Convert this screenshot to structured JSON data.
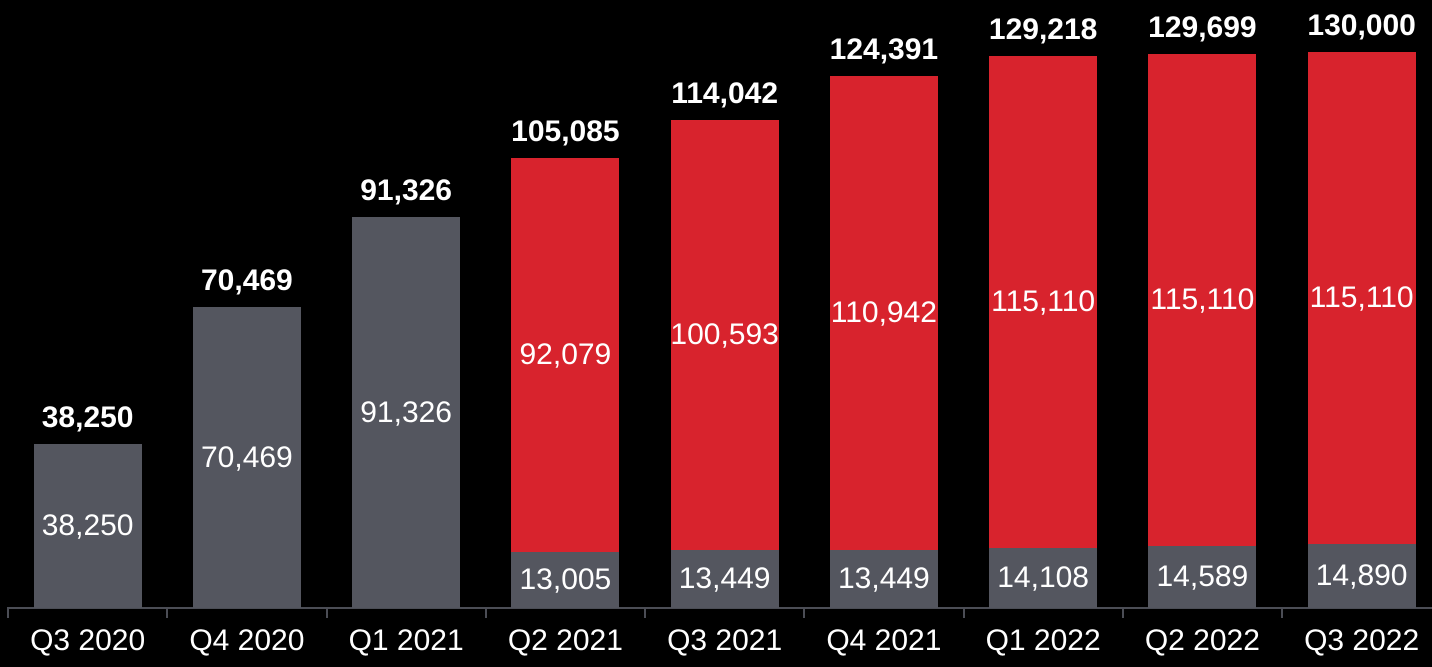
{
  "chart_data": {
    "type": "bar",
    "subtype": "stacked-column",
    "title": "",
    "xlabel": "",
    "ylabel": "",
    "categories": [
      "Q3 2020",
      "Q4 2020",
      "Q1 2021",
      "Q2 2021",
      "Q3 2021",
      "Q4 2021",
      "Q1 2022",
      "Q2 2022",
      "Q3 2022"
    ],
    "series": [
      {
        "name": "base-segment",
        "color": "#54565F",
        "values": [
          38250,
          70469,
          91326,
          13005,
          13449,
          13449,
          14108,
          14589,
          14890
        ]
      },
      {
        "name": "top-segment",
        "color": "#D8232D",
        "values": [
          0,
          0,
          0,
          92079,
          100593,
          110942,
          115110,
          115110,
          115110
        ]
      }
    ],
    "totals": [
      38250,
      70469,
      91326,
      105085,
      114042,
      124391,
      129218,
      129699,
      130000
    ],
    "segment_labels": {
      "base": [
        "38,250",
        "70,469",
        "91,326",
        "13,005",
        "13,449",
        "13,449",
        "14,108",
        "14,589",
        "14,890"
      ],
      "top": [
        "",
        "",
        "",
        "92,079",
        "100,593",
        "110,942",
        "115,110",
        "115,110",
        "115,110"
      ]
    },
    "total_labels": [
      "38,250",
      "70,469",
      "91,326",
      "105,085",
      "114,042",
      "124,391",
      "129,218",
      "129,699",
      "130,000"
    ],
    "ylim": [
      0,
      130000
    ],
    "grid": false,
    "legend_position": "none",
    "colors": {
      "background": "#000000",
      "bar_gray": "#54565F",
      "bar_red": "#D8232D",
      "label_text": "#FFFFFF",
      "axis_line": "#4B4D55"
    }
  }
}
